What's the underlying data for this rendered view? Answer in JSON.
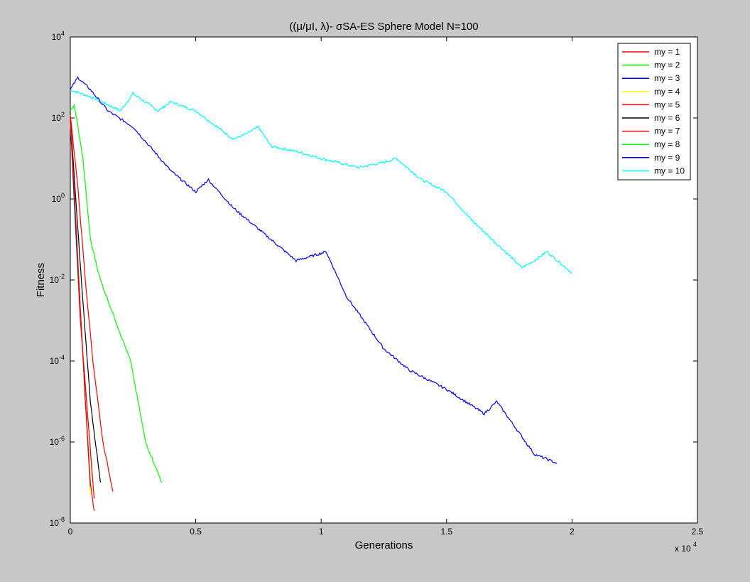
{
  "chart_data": {
    "type": "line",
    "title": "((μ/μI, λ)- σSA-ES Sphere Model N=100",
    "xlabel": "Generations",
    "ylabel": "Fitness",
    "x_multiplier_label": "x 10",
    "x_multiplier_exponent": "4",
    "xlim": [
      0,
      25000
    ],
    "ylim": [
      1e-08,
      10000.0
    ],
    "yscale": "log",
    "xticks": [
      {
        "value": 0,
        "label": "0"
      },
      {
        "value": 5000,
        "label": "0.5"
      },
      {
        "value": 10000,
        "label": "1"
      },
      {
        "value": 15000,
        "label": "1.5"
      },
      {
        "value": 20000,
        "label": "2"
      },
      {
        "value": 25000,
        "label": "2.5"
      }
    ],
    "yticks": [
      {
        "value": 10000.0,
        "base": "10",
        "exp": "4"
      },
      {
        "value": 100.0,
        "base": "10",
        "exp": "2"
      },
      {
        "value": 1,
        "base": "10",
        "exp": "0"
      },
      {
        "value": 0.01,
        "base": "10",
        "exp": "-2"
      },
      {
        "value": 0.0001,
        "base": "10",
        "exp": "-4"
      },
      {
        "value": 1e-06,
        "base": "10",
        "exp": "-6"
      },
      {
        "value": 1e-08,
        "base": "10",
        "exp": "-8"
      }
    ],
    "grid": false,
    "legend_position": "top-right",
    "series": [
      {
        "name": "my = 1",
        "color": "#ff0000",
        "x": [
          0,
          200,
          400,
          600,
          800,
          950
        ],
        "y": [
          100,
          0.5,
          0.002,
          1e-05,
          1e-07,
          2e-08
        ]
      },
      {
        "name": "my = 2",
        "color": "#00ff00",
        "x": [
          0,
          150,
          250,
          500,
          800,
          1200,
          1800,
          2400,
          3000,
          3650
        ],
        "y": [
          150,
          200,
          100,
          10,
          0.1,
          0.01,
          0.001,
          0.0001,
          1e-06,
          1e-07
        ]
      },
      {
        "name": "my = 3",
        "color": "#0000ff",
        "x": [
          0,
          300,
          800,
          1500,
          2500,
          4000,
          5000,
          5500,
          6500,
          8000,
          9000,
          10200,
          11000,
          12500,
          13500,
          15000,
          16500,
          17000,
          18500,
          19400
        ],
        "y": [
          500,
          1000,
          500,
          150,
          60,
          5,
          1.5,
          3,
          0.6,
          0.1,
          0.03,
          0.05,
          0.004,
          0.0002,
          6e-05,
          2e-05,
          5e-06,
          1e-05,
          5e-07,
          3e-07
        ]
      },
      {
        "name": "my = 4",
        "color": "#ffff00",
        "x": [
          0,
          200,
          400,
          600,
          800
        ],
        "y": [
          80,
          0.3,
          0.002,
          1e-05,
          5e-08
        ]
      },
      {
        "name": "my = 5",
        "color": "#ff0000",
        "x": [
          0,
          300,
          600,
          900,
          1300,
          1700
        ],
        "y": [
          120,
          2,
          0.01,
          0.0001,
          1e-06,
          6e-08
        ]
      },
      {
        "name": "my = 6",
        "color": "#000000",
        "x": [
          0,
          250,
          500,
          800,
          1200
        ],
        "y": [
          100,
          0.5,
          0.003,
          1e-05,
          1e-07
        ]
      },
      {
        "name": "my = 7",
        "color": "#ff0000",
        "x": [
          0,
          200,
          400,
          650,
          950
        ],
        "y": [
          100,
          0.3,
          0.001,
          1e-05,
          4e-08
        ]
      },
      {
        "name": "my = 8",
        "color": "#00ff00",
        "x": [
          0,
          200,
          400,
          650,
          900
        ],
        "y": [
          80,
          0.2,
          0.001,
          1e-05,
          1e-07
        ]
      },
      {
        "name": "my = 9",
        "color": "#0000ff",
        "x": [
          0,
          200,
          400,
          600,
          800
        ],
        "y": [
          90,
          0.3,
          0.002,
          1e-05,
          8e-08
        ]
      },
      {
        "name": "my = 10",
        "color": "#00ffff",
        "x": [
          0,
          1000,
          2000,
          2500,
          3500,
          4000,
          5000,
          6500,
          7000,
          7500,
          8000,
          9000,
          10000,
          11500,
          12500,
          13000,
          14000,
          15000,
          16000,
          17500,
          18000,
          18500,
          19000,
          20000
        ],
        "y": [
          500,
          300,
          150,
          400,
          150,
          250,
          150,
          30,
          40,
          60,
          20,
          15,
          10,
          6,
          8,
          10,
          3,
          1.5,
          0.3,
          0.04,
          0.02,
          0.03,
          0.05,
          0.015
        ]
      }
    ]
  }
}
